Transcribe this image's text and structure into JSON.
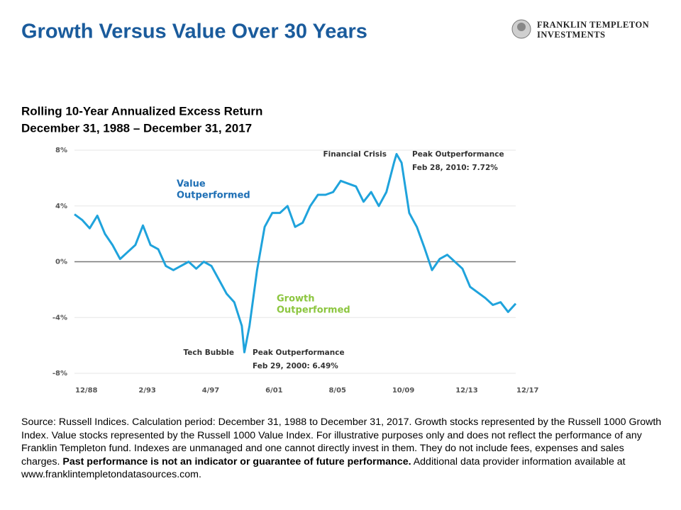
{
  "header": {
    "title": "Growth Versus Value Over 30 Years",
    "logo": [
      "FRANKLIN TEMPLETON",
      "INVESTMENTS"
    ]
  },
  "chart_data": {
    "type": "line",
    "title": "Rolling 10-Year Annualized Excess Return",
    "subtitle": "December 31, 1988 – December 31, 2017",
    "color": "#1fa3dc",
    "x": [
      "12/88",
      "6/89",
      "12/89",
      "6/90",
      "12/90",
      "6/91",
      "12/91",
      "6/92",
      "12/92",
      "6/93",
      "12/93",
      "6/94",
      "12/94",
      "6/95",
      "12/95",
      "6/96",
      "12/96",
      "6/97",
      "12/97",
      "6/98",
      "12/98",
      "6/99",
      "12/99",
      "2/00",
      "6/00",
      "12/00",
      "6/01",
      "12/01",
      "6/02",
      "12/02",
      "6/03",
      "12/03",
      "6/04",
      "12/04",
      "6/05",
      "12/05",
      "6/06",
      "12/06",
      "6/07",
      "12/07",
      "6/08",
      "12/08",
      "6/09",
      "12/09",
      "2/10",
      "6/10",
      "12/10",
      "6/11",
      "12/11",
      "6/12",
      "12/12",
      "6/13",
      "12/13",
      "6/14",
      "12/14",
      "6/15",
      "12/15",
      "6/16",
      "12/16",
      "6/17",
      "12/17"
    ],
    "values": [
      3.4,
      3.0,
      2.4,
      3.3,
      2.0,
      1.2,
      0.2,
      0.7,
      1.2,
      2.6,
      1.2,
      0.9,
      -0.3,
      -0.6,
      -0.3,
      0.0,
      -0.5,
      0.0,
      -0.3,
      -1.3,
      -2.3,
      -2.9,
      -4.6,
      -6.49,
      -4.6,
      -0.6,
      2.5,
      3.5,
      3.5,
      4.0,
      2.5,
      2.8,
      4.0,
      4.8,
      4.8,
      5.0,
      5.8,
      5.6,
      5.4,
      4.3,
      5.0,
      4.0,
      5.0,
      7.1,
      7.72,
      7.1,
      3.5,
      2.5,
      1.0,
      -0.6,
      0.2,
      0.5,
      0.0,
      -0.5,
      -1.8,
      -2.2,
      -2.6,
      -3.1,
      -2.9,
      -3.6,
      -3.0
    ],
    "ylim": [
      -8,
      8
    ],
    "yticks": [
      {
        "value": -8,
        "label": "-8%"
      },
      {
        "value": -4,
        "label": "-4%"
      },
      {
        "value": 0,
        "label": "0%"
      },
      {
        "value": 4,
        "label": "4%"
      },
      {
        "value": 8,
        "label": "8%"
      }
    ],
    "xticks": [
      "12/88",
      "2/93",
      "4/97",
      "6/01",
      "8/05",
      "10/09",
      "12/13",
      "12/17"
    ],
    "grid": true,
    "annotations": {
      "value": [
        "Value",
        "Outperformed"
      ],
      "growth": [
        "Growth",
        "Outperformed"
      ],
      "crisis": "Financial Crisis",
      "peak_2010": [
        "Peak Outperformance",
        "Feb 28, 2010: 7.72%"
      ],
      "bubble": "Tech Bubble",
      "peak_2000": [
        "Peak Outperformance",
        "Feb 29, 2000: 6.49%"
      ]
    }
  },
  "source": {
    "text": "Source: Russell Indices. Calculation period: December 31, 1988 to December 31, 2017. Growth stocks represented by the Russell 1000 Growth Index. Value stocks represented by the Russell 1000 Value Index. For illustrative purposes only and does not reflect the performance of any Franklin Templeton fund. Indexes are unmanaged and one cannot directly invest in them. They do not include fees, expenses and sales charges.",
    "bold": "Past performance is not an indicator or guarantee of future performance.",
    "tail": "Additional data provider information available at www.franklintempletondatasources.com."
  }
}
